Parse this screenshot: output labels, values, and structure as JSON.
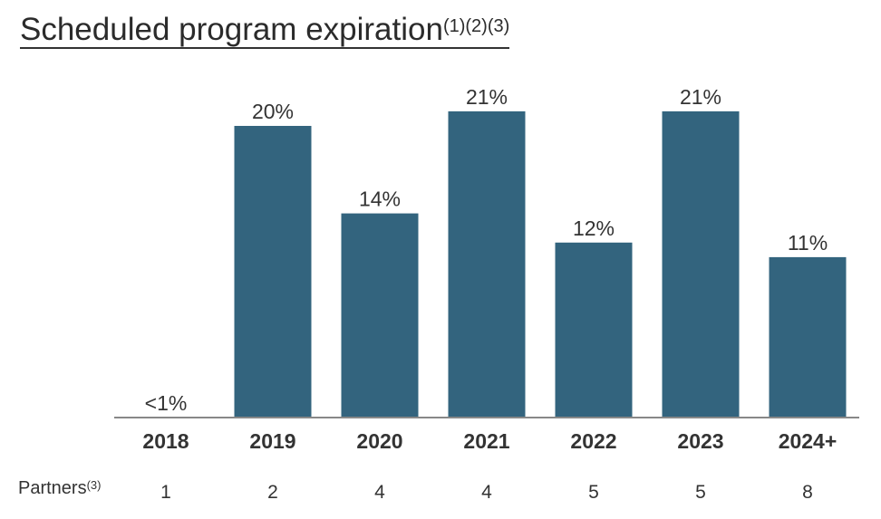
{
  "chart_data": {
    "type": "bar",
    "title": "Scheduled program expiration",
    "title_superscript": "(1)(2)(3)",
    "categories": [
      "2018",
      "2019",
      "2020",
      "2021",
      "2022",
      "2023",
      "2024+"
    ],
    "values": [
      0.3,
      20,
      14,
      21,
      12,
      21,
      11
    ],
    "data_labels": [
      "<1%",
      "20%",
      "14%",
      "21%",
      "12%",
      "21%",
      "11%"
    ],
    "ylim": [
      0,
      21
    ],
    "grid": false,
    "bar_color": "#33647e",
    "axis_color": "#888888",
    "partners": {
      "label": "Partners",
      "label_superscript": "(3)",
      "values": [
        "1",
        "2",
        "4",
        "4",
        "5",
        "5",
        "8"
      ]
    }
  }
}
